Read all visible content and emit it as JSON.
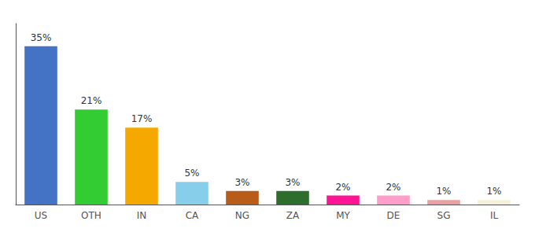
{
  "chart_data": {
    "type": "bar",
    "categories": [
      "US",
      "OTH",
      "IN",
      "CA",
      "NG",
      "ZA",
      "MY",
      "DE",
      "SG",
      "IL"
    ],
    "values": [
      35,
      21,
      17,
      5,
      3,
      3,
      2,
      2,
      1,
      1
    ],
    "value_labels": [
      "35%",
      "21%",
      "17%",
      "5%",
      "3%",
      "3%",
      "2%",
      "2%",
      "1%",
      "1%"
    ],
    "colors": [
      "#4472c4",
      "#33cc33",
      "#f5a800",
      "#87ceeb",
      "#b85c1a",
      "#2d6e2d",
      "#ff1493",
      "#ff9ec8",
      "#e8a0a0",
      "#f5f0d8"
    ],
    "ylim": [
      0,
      40
    ],
    "data_labels": true,
    "tick_labels": "x",
    "grid": false
  }
}
